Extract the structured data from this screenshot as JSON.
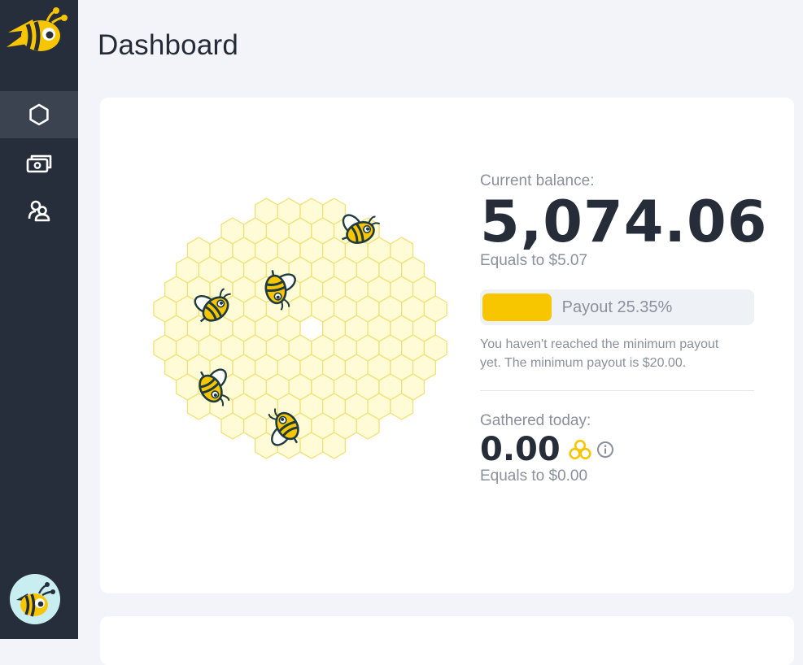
{
  "page": {
    "title": "Dashboard"
  },
  "sidebar": {
    "logo": "bee-logo-icon",
    "items": [
      {
        "name": "dashboard",
        "icon": "hexagon-icon",
        "active": true
      },
      {
        "name": "wallet",
        "icon": "cash-icon",
        "active": false
      },
      {
        "name": "referrals",
        "icon": "users-icon",
        "active": false
      }
    ],
    "avatar": "bee-avatar-icon"
  },
  "balance": {
    "label": "Current balance:",
    "value": "5,074.06",
    "currency_icon": "honeycomb-coins-icon",
    "equals": "Equals to $5.07"
  },
  "payout": {
    "progress_percent": 25.35,
    "label": "Payout 25.35%",
    "note": "You haven't reached the minimum payout yet. The minimum payout is $20.00."
  },
  "gathered": {
    "label": "Gathered today:",
    "value": "0.00",
    "currency_icon": "honeycomb-coins-icon",
    "info_icon": "info-icon",
    "equals": "Equals to $0.00"
  },
  "colors": {
    "sidebar": "#272e3b",
    "accent": "#f7c600",
    "honeycomb_fill": "#fffbd6",
    "honeycomb_stroke": "#f2e176",
    "text_dark": "#262d39",
    "text_muted": "#8a909c"
  }
}
